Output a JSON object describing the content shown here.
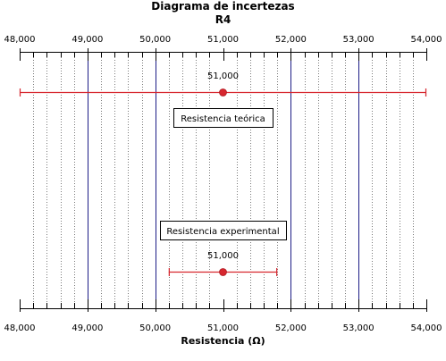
{
  "chart_data": {
    "type": "scatter",
    "title": "Diagrama de incertezas",
    "subtitle": "R4",
    "xlabel": "Resistencia (Ω)",
    "xlim": [
      48000,
      54000
    ],
    "major_ticks": [
      48000,
      49000,
      50000,
      51000,
      52000,
      53000,
      54000
    ],
    "tick_labels": [
      "48,000",
      "49,000",
      "50,000",
      "51,000",
      "52,000",
      "53,000",
      "54,000"
    ],
    "minor_step": 200,
    "vertical_lines": [
      49000,
      50000,
      52000,
      53000
    ],
    "grid": "minor dotted",
    "series": [
      {
        "name": "Resistencia teórica",
        "value": 51000,
        "value_label": "51,000",
        "xmin": 48000,
        "xmax": 54000,
        "color": "#d6262e"
      },
      {
        "name": "Resistencia experimental",
        "value": 51000,
        "value_label": "51,000",
        "xmin": 50200,
        "xmax": 51800,
        "color": "#d6262e"
      }
    ],
    "colors": {
      "reference_lines": "#1c1c86",
      "error_bars": "#d6262e",
      "grid": "#7a7a7a"
    }
  }
}
